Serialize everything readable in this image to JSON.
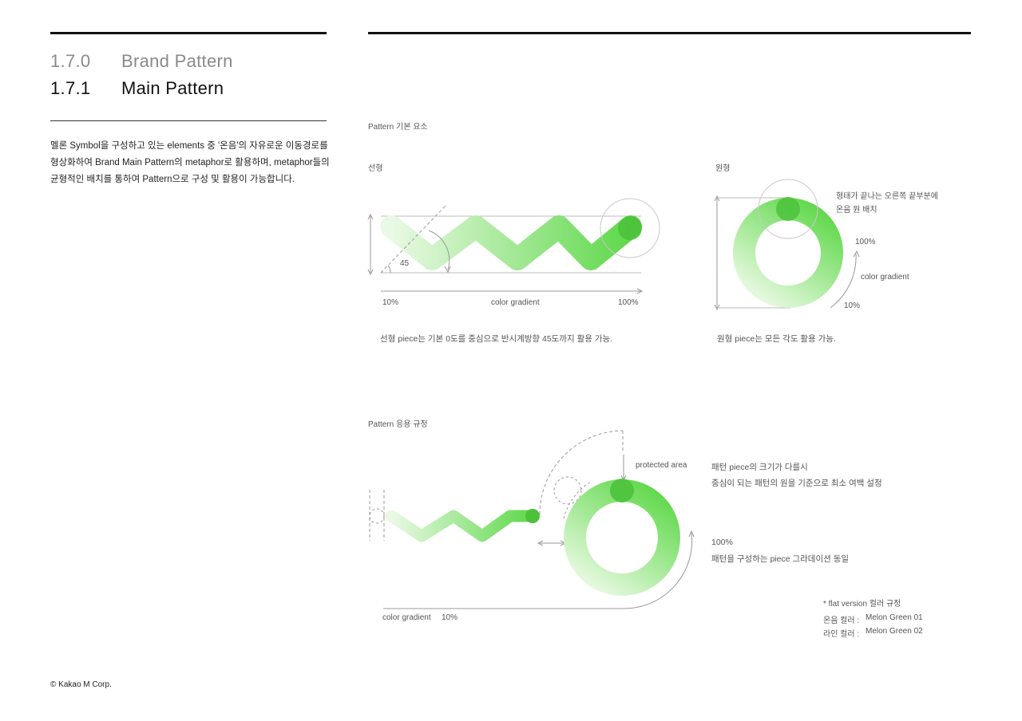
{
  "header": {
    "brand_pattern": {
      "num": "1.7.0",
      "title": "Brand Pattern"
    },
    "main_pattern": {
      "num": "1.7.1",
      "title": "Main Pattern"
    }
  },
  "description": "멜론 Symbol을 구성하고 있는 elements 중 '온음'의 자유로운 이동경로를 형상화하여 Brand Main Pattern의 metaphor로 활용하며, metaphor들의 균형적인 배치를 통하여 Pattern으로 구성 및 활용이 가능합니다.",
  "basic": {
    "section_title": "Pattern 기본 요소",
    "linear": {
      "title": "선형",
      "angle_label": "45",
      "start_label": "10%",
      "gradient_label": "color gradient",
      "end_label": "100%",
      "caption": "선형 piece는 기본 0도를 중심으로 반시계방향 45도까지 활용 가능."
    },
    "circular": {
      "title": "원형",
      "note_line1": "형태가 끝나는 오른쪽 끝부분에",
      "note_line2": "온음 원 배치",
      "end_label": "100%",
      "gradient_label": "color gradient",
      "start_label": "10%",
      "caption": "원형 piece는 모든 각도 활용 가능."
    }
  },
  "application": {
    "section_title": "Pattern 응용 규정",
    "protected_label": "protected area",
    "note_line1": "패턴 piece의 크기가 다를시",
    "note_line2": "중심이 되는 패턴의 원을 기준으로 최소 여백 설정",
    "pct_label": "100%",
    "gradient_note": "패턴을 구성하는 piece 그라데이션 동일",
    "gradient_label": "color gradient",
    "start_label": "10%",
    "flat_title": "* flat version 컬러 규정",
    "flat_row1_label": "온음 컬러 :",
    "flat_row1_value": "Melon Green 01",
    "flat_row2_label": "라인 컬러 :",
    "flat_row2_value": "Melon Green 02"
  },
  "footer": "© Kakao M Corp.",
  "colors": {
    "melon_green": "#5fd84a",
    "melon_green_light": "#e2f8dc",
    "dot_green": "#4cc23b"
  }
}
